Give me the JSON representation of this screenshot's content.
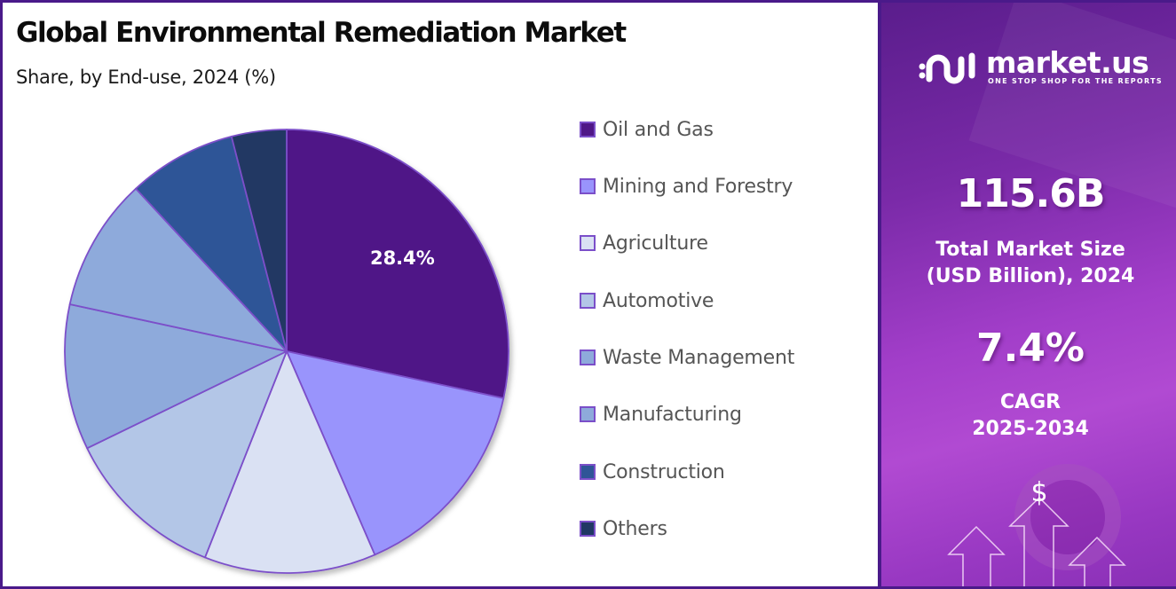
{
  "header": {
    "title": "Global Environmental Remediation Market",
    "subtitle": "Share, by End-use, 2024 (%)"
  },
  "chart_data": {
    "type": "pie",
    "title": "Global Environmental Remediation Market",
    "subtitle": "Share, by End-use, 2024 (%)",
    "categories": [
      "Oil and Gas",
      "Mining and Forestry",
      "Agriculture",
      "Automotive",
      "Waste Management",
      "Manufacturing",
      "Construction",
      "Others"
    ],
    "values": [
      28.4,
      15.1,
      12.5,
      11.8,
      10.6,
      9.7,
      7.9,
      4.0
    ],
    "colors": [
      "#4f1787",
      "#9994fc",
      "#dae1f3",
      "#b3c6e7",
      "#8eaadb",
      "#8eaadb",
      "#2f5597",
      "#203864"
    ],
    "data_labels": [
      {
        "category": "Oil and Gas",
        "text": "28.4%"
      }
    ],
    "start_angle_deg": 0,
    "direction": "clockwise",
    "legend_position": "right",
    "slice_border_color": "#7b4fc9"
  },
  "legend": {
    "items": [
      {
        "label": "Oil and Gas",
        "color": "#4f1787"
      },
      {
        "label": "Mining and Forestry",
        "color": "#9994fc"
      },
      {
        "label": "Agriculture",
        "color": "#dae1f3"
      },
      {
        "label": "Automotive",
        "color": "#b3c6e7"
      },
      {
        "label": "Waste Management",
        "color": "#8eaadb"
      },
      {
        "label": "Manufacturing",
        "color": "#8eaadb"
      },
      {
        "label": "Construction",
        "color": "#2f5597"
      },
      {
        "label": "Others",
        "color": "#203864"
      }
    ]
  },
  "sidebar": {
    "brand": {
      "name": "market.us",
      "tagline": "ONE STOP SHOP FOR THE REPORTS",
      "icon": "market-us-logo-icon"
    },
    "market_size": {
      "value": "115.6B",
      "label_line1": "Total Market Size",
      "label_line2": "(USD Billion), 2024"
    },
    "cagr": {
      "value": "7.4%",
      "label_line1": "CAGR",
      "label_line2": "2025-2034"
    },
    "decoration": {
      "dollar_symbol": "$",
      "icon": "growth-arrows-icon"
    }
  },
  "theme": {
    "border": "#4a1a8a",
    "panel_gradient_start": "#5a1d8c",
    "panel_gradient_mid": "#b14ad2"
  }
}
